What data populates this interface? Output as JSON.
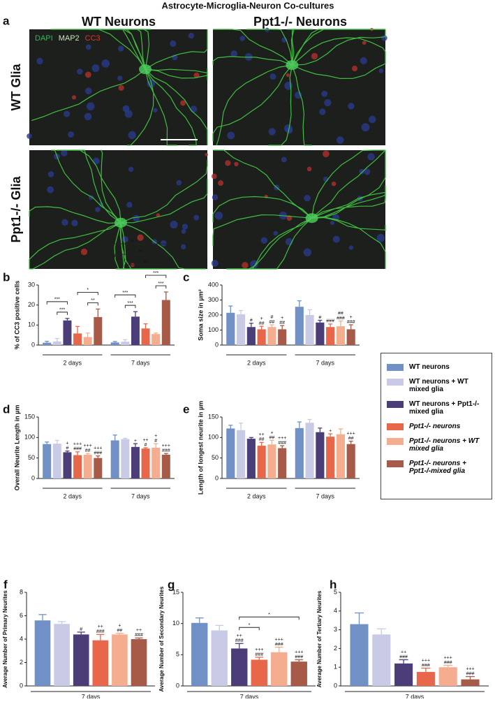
{
  "title": "Astrocyte-Microglia-Neuron Co-cultures",
  "panel_a": {
    "label": "a",
    "columns": [
      "WT Neurons",
      "Ppt1-/- Neurons"
    ],
    "rows": [
      "WT Glia",
      "Ppt1-/- Glia"
    ],
    "stains": [
      {
        "name": "DAPI",
        "color": "#3fb060"
      },
      {
        "name": "MAP2",
        "color": "#c8e8b0"
      },
      {
        "name": "CC3",
        "color": "#d83a2a"
      }
    ]
  },
  "legend": [
    {
      "name": "WT neurons",
      "color": "#7090c6",
      "italic": false
    },
    {
      "name": "WT neurons + WT mixed glia",
      "color": "#c9cbe6",
      "italic": false
    },
    {
      "name": "WT neurons + Ppt1-/-mixed glia",
      "color": "#4b3d78",
      "italic": false
    },
    {
      "name": "Ppt1-/- neurons",
      "color": "#e8664a",
      "italic": true
    },
    {
      "name": "Ppt1-/- neurons + WT mixed glia",
      "color": "#f4ad8e",
      "italic": true
    },
    {
      "name": "Ppt1-/- neurons + Ppt1-/-mixed glia",
      "color": "#a65a47",
      "italic": true
    }
  ],
  "chart_data": [
    {
      "type": "bar",
      "label": "b",
      "ylabel": "% of CC3 positive cells",
      "categories": [
        "2 days",
        "7 days"
      ],
      "ylim": [
        0,
        30
      ],
      "yticks": [
        0,
        10,
        20,
        30
      ],
      "series": [
        {
          "values": [
            1.2,
            1.3
          ],
          "errors": [
            0.7,
            0.5
          ],
          "symbols": [
            [],
            []
          ]
        },
        {
          "values": [
            1.8,
            1.7
          ],
          "errors": [
            1.5,
            1.0
          ],
          "symbols": [
            [],
            []
          ]
        },
        {
          "values": [
            12.3,
            14.2
          ],
          "errors": [
            1.0,
            2.5
          ],
          "symbols": [
            [],
            []
          ]
        },
        {
          "values": [
            5.8,
            8.3
          ],
          "errors": [
            3.5,
            2.3
          ],
          "symbols": [
            [],
            []
          ]
        },
        {
          "values": [
            4.0,
            5.5
          ],
          "errors": [
            2.0,
            0.5
          ],
          "symbols": [
            [],
            []
          ]
        },
        {
          "values": [
            14.0,
            22.5
          ],
          "errors": [
            4.0,
            4.0
          ],
          "symbols": [
            [],
            []
          ]
        }
      ],
      "brackets": [
        {
          "from": [
            0,
            1
          ],
          "to": [
            0,
            2
          ],
          "label": "***"
        },
        {
          "from": [
            0,
            0
          ],
          "to": [
            0,
            2
          ],
          "label": "***"
        },
        {
          "from": [
            0,
            4
          ],
          "to": [
            0,
            5
          ],
          "label": "**"
        },
        {
          "from": [
            0,
            3
          ],
          "to": [
            0,
            5
          ],
          "label": "*"
        },
        {
          "from": [
            1,
            1
          ],
          "to": [
            1,
            2
          ],
          "label": "***"
        },
        {
          "from": [
            1,
            0
          ],
          "to": [
            1,
            2
          ],
          "label": "***"
        },
        {
          "from": [
            1,
            4
          ],
          "to": [
            1,
            5
          ],
          "label": "***"
        },
        {
          "from": [
            1,
            3
          ],
          "to": [
            1,
            5
          ],
          "label": "***"
        },
        {
          "from": [
            1,
            1
          ],
          "to": [
            1,
            5
          ],
          "label": "**"
        },
        {
          "from": [
            1,
            0
          ],
          "to": [
            1,
            5
          ],
          "label": "**"
        },
        {
          "from": [
            0,
            5
          ],
          "to": [
            1,
            5
          ],
          "label": "**"
        }
      ]
    },
    {
      "type": "bar",
      "label": "c",
      "ylabel": "Soma size in μm²",
      "categories": [
        "2 days",
        "7 days"
      ],
      "ylim": [
        0,
        400
      ],
      "yticks": [
        0,
        100,
        200,
        300,
        400
      ],
      "series": [
        {
          "values": [
            215,
            255
          ],
          "errors": [
            45,
            40
          ],
          "symbols": [
            [],
            []
          ]
        },
        {
          "values": [
            205,
            200
          ],
          "errors": [
            25,
            35
          ],
          "symbols": [
            [],
            []
          ]
        },
        {
          "values": [
            120,
            150
          ],
          "errors": [
            25,
            15
          ],
          "symbols": [
            [
              "#"
            ],
            [
              "#"
            ]
          ]
        },
        {
          "values": [
            105,
            120
          ],
          "errors": [
            20,
            20
          ],
          "symbols": [
            [
              "+",
              "##"
            ],
            [
              "###"
            ]
          ]
        },
        {
          "values": [
            120,
            125
          ],
          "errors": [
            15,
            35
          ],
          "symbols": [
            [
              "#",
              "##"
            ],
            [
              "##",
              "###"
            ]
          ]
        },
        {
          "values": [
            105,
            105
          ],
          "errors": [
            25,
            30
          ],
          "symbols": [
            [
              "+",
              "##"
            ],
            [
              "+",
              "###"
            ]
          ]
        }
      ],
      "brackets": []
    },
    {
      "type": "bar",
      "label": "d",
      "ylabel": "Overall Neurite Length in µm",
      "categories": [
        "2 days",
        "7 days"
      ],
      "ylim": [
        0,
        150
      ],
      "yticks": [
        0,
        50,
        100,
        150
      ],
      "series": [
        {
          "values": [
            84,
            93
          ],
          "errors": [
            5,
            13
          ],
          "symbols": [
            [],
            []
          ]
        },
        {
          "values": [
            85,
            96
          ],
          "errors": [
            8,
            2
          ],
          "symbols": [
            [],
            []
          ]
        },
        {
          "values": [
            64,
            77
          ],
          "errors": [
            3,
            8
          ],
          "symbols": [
            [
              "+",
              "#"
            ],
            [
              "+"
            ]
          ]
        },
        {
          "values": [
            57,
            73
          ],
          "errors": [
            8,
            2
          ],
          "symbols": [
            [
              "+++",
              "###"
            ],
            [
              "++",
              "#"
            ]
          ]
        },
        {
          "values": [
            58,
            75
          ],
          "errors": [
            3,
            10
          ],
          "symbols": [
            [
              "+++",
              "##"
            ],
            [
              "+",
              "#"
            ]
          ]
        },
        {
          "values": [
            50,
            58
          ],
          "errors": [
            5,
            3
          ],
          "symbols": [
            [
              "+++",
              "###"
            ],
            [
              "+++",
              "###"
            ]
          ]
        }
      ],
      "brackets": []
    },
    {
      "type": "bar",
      "label": "e",
      "ylabel": "Length of longest neurite in µm",
      "categories": [
        "2 days",
        "7 days"
      ],
      "ylim": [
        0,
        150
      ],
      "yticks": [
        0,
        50,
        100,
        150
      ],
      "series": [
        {
          "values": [
            122,
            123
          ],
          "errors": [
            8,
            15
          ],
          "symbols": [
            [],
            []
          ]
        },
        {
          "values": [
            118,
            136
          ],
          "errors": [
            17,
            8
          ],
          "symbols": [
            [],
            []
          ]
        },
        {
          "values": [
            97,
            113
          ],
          "errors": [
            3,
            10
          ],
          "symbols": [
            [],
            []
          ]
        },
        {
          "values": [
            80,
            102
          ],
          "errors": [
            8,
            7
          ],
          "symbols": [
            [
              "++",
              "##"
            ],
            [
              "+"
            ]
          ]
        },
        {
          "values": [
            83,
            108
          ],
          "errors": [
            10,
            13
          ],
          "symbols": [
            [
              "+",
              "##"
            ],
            []
          ]
        },
        {
          "values": [
            74,
            84
          ],
          "errors": [
            6,
            7
          ],
          "symbols": [
            [
              "+++",
              "###"
            ],
            [
              "+++",
              "##"
            ]
          ]
        }
      ],
      "brackets": []
    },
    {
      "type": "bar",
      "label": "f",
      "ylabel": "Average Number of Primary Neurites",
      "categories": [
        "7 days"
      ],
      "ylim": [
        0,
        8
      ],
      "yticks": [
        0,
        2,
        4,
        6,
        8
      ],
      "series": [
        {
          "values": [
            5.6
          ],
          "errors": [
            0.5
          ],
          "symbols": [
            []
          ]
        },
        {
          "values": [
            5.3
          ],
          "errors": [
            0.2
          ],
          "symbols": [
            []
          ]
        },
        {
          "values": [
            4.4
          ],
          "errors": [
            0.2
          ],
          "symbols": [
            [
              "#"
            ]
          ]
        },
        {
          "values": [
            3.9
          ],
          "errors": [
            0.5
          ],
          "symbols": [
            [
              "++",
              "###"
            ]
          ]
        },
        {
          "values": [
            4.4
          ],
          "errors": [
            0.1
          ],
          "symbols": [
            [
              "+",
              "##"
            ]
          ]
        },
        {
          "values": [
            4.0
          ],
          "errors": [
            0.1
          ],
          "symbols": [
            [
              "++",
              "###"
            ]
          ]
        }
      ],
      "brackets": []
    },
    {
      "type": "bar",
      "label": "g",
      "ylabel": "Average Number of Secondary Neurites",
      "categories": [
        "7 days"
      ],
      "ylim": [
        0,
        15
      ],
      "yticks": [
        0,
        5,
        10,
        15
      ],
      "series": [
        {
          "values": [
            10.1
          ],
          "errors": [
            0.8
          ],
          "symbols": [
            []
          ]
        },
        {
          "values": [
            8.9
          ],
          "errors": [
            0.8
          ],
          "symbols": [
            []
          ]
        },
        {
          "values": [
            6.0
          ],
          "errors": [
            0.8
          ],
          "symbols": [
            [
              "++",
              "###"
            ]
          ]
        },
        {
          "values": [
            4.2
          ],
          "errors": [
            0.4
          ],
          "symbols": [
            [
              "+++",
              "###"
            ]
          ]
        },
        {
          "values": [
            5.4
          ],
          "errors": [
            0.8
          ],
          "symbols": [
            [
              "+++",
              "###"
            ]
          ]
        },
        {
          "values": [
            3.9
          ],
          "errors": [
            0.3
          ],
          "symbols": [
            [
              "+++",
              "###"
            ]
          ]
        }
      ],
      "brackets": [
        {
          "from": [
            0,
            2
          ],
          "to": [
            0,
            3
          ],
          "label": "*"
        },
        {
          "from": [
            0,
            2
          ],
          "to": [
            0,
            5
          ],
          "label": "*"
        }
      ]
    },
    {
      "type": "bar",
      "label": "h",
      "ylabel": "Average Number of Tertiary Neurites",
      "categories": [
        "7 days"
      ],
      "ylim": [
        0,
        5
      ],
      "yticks": [
        0,
        1,
        2,
        3,
        4,
        5
      ],
      "series": [
        {
          "values": [
            3.3
          ],
          "errors": [
            0.6
          ],
          "symbols": [
            []
          ]
        },
        {
          "values": [
            2.75
          ],
          "errors": [
            0.3
          ],
          "symbols": [
            []
          ]
        },
        {
          "values": [
            1.2
          ],
          "errors": [
            0.2
          ],
          "symbols": [
            [
              "++",
              "###"
            ]
          ]
        },
        {
          "values": [
            0.75
          ],
          "errors": [
            0.2
          ],
          "symbols": [
            [
              "+++",
              "###"
            ]
          ]
        },
        {
          "values": [
            1.0
          ],
          "errors": [
            0.1
          ],
          "symbols": [
            [
              "+++",
              "###"
            ]
          ]
        },
        {
          "values": [
            0.35
          ],
          "errors": [
            0.15
          ],
          "symbols": [
            [
              "+++",
              "###"
            ]
          ]
        }
      ],
      "brackets": []
    }
  ]
}
